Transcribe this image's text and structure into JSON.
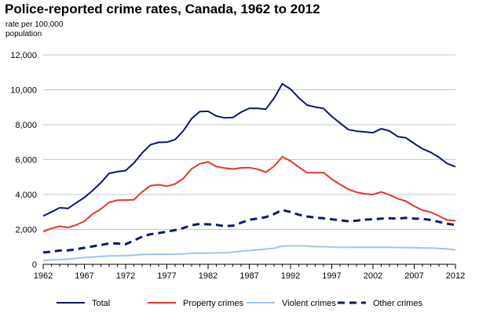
{
  "chart_data": {
    "type": "line",
    "title": "Police-reported crime rates, Canada, 1962 to 2012",
    "ylabel": "rate per 100,000 population",
    "xlabel": "",
    "ylim": [
      0,
      12000
    ],
    "xlim": [
      1962,
      2012
    ],
    "y_ticks": [
      "0",
      "2,000",
      "4,000",
      "6,000",
      "8,000",
      "10,000",
      "12,000"
    ],
    "x_ticks": [
      "1962",
      "1967",
      "1972",
      "1977",
      "1982",
      "1987",
      "1992",
      "1997",
      "2002",
      "2007",
      "2012"
    ],
    "grid": "horizontal",
    "legend_position": "bottom",
    "x": [
      1962,
      1963,
      1964,
      1965,
      1966,
      1967,
      1968,
      1969,
      1970,
      1971,
      1972,
      1973,
      1974,
      1975,
      1976,
      1977,
      1978,
      1979,
      1980,
      1981,
      1982,
      1983,
      1984,
      1985,
      1986,
      1987,
      1988,
      1989,
      1990,
      1991,
      1992,
      1993,
      1994,
      1995,
      1996,
      1997,
      1998,
      1999,
      2000,
      2001,
      2002,
      2003,
      2004,
      2005,
      2006,
      2007,
      2008,
      2009,
      2010,
      2011,
      2012
    ],
    "series": [
      {
        "name": "Total",
        "color": "#0a1a6e",
        "style": "solid",
        "values": [
          2770,
          3000,
          3240,
          3200,
          3520,
          3830,
          4230,
          4680,
          5210,
          5310,
          5370,
          5800,
          6380,
          6850,
          6990,
          7000,
          7150,
          7650,
          8350,
          8750,
          8770,
          8500,
          8390,
          8410,
          8720,
          8940,
          8940,
          8890,
          9520,
          10340,
          10040,
          9540,
          9130,
          9010,
          8930,
          8470,
          8100,
          7720,
          7630,
          7590,
          7540,
          7770,
          7640,
          7320,
          7250,
          6920,
          6620,
          6420,
          6130,
          5770,
          5590
        ]
      },
      {
        "name": "Property crimes",
        "color": "#e8352a",
        "style": "solid",
        "values": [
          1870,
          2060,
          2180,
          2110,
          2250,
          2470,
          2880,
          3170,
          3550,
          3670,
          3680,
          3700,
          4150,
          4500,
          4560,
          4480,
          4600,
          4920,
          5470,
          5760,
          5870,
          5600,
          5520,
          5460,
          5530,
          5540,
          5450,
          5270,
          5620,
          6160,
          5920,
          5570,
          5250,
          5250,
          5260,
          4880,
          4580,
          4300,
          4130,
          4040,
          4000,
          4150,
          3980,
          3760,
          3620,
          3330,
          3100,
          2990,
          2770,
          2540,
          2500
        ]
      },
      {
        "name": "Violent crimes",
        "color": "#9cc6ec",
        "style": "solid",
        "values": [
          220,
          250,
          270,
          290,
          340,
          390,
          420,
          450,
          480,
          480,
          500,
          530,
          560,
          570,
          580,
          570,
          580,
          600,
          630,
          640,
          640,
          650,
          660,
          700,
          750,
          790,
          830,
          870,
          920,
          1040,
          1060,
          1060,
          1050,
          1010,
          1010,
          990,
          970,
          970,
          980,
          980,
          980,
          980,
          980,
          960,
          960,
          950,
          930,
          930,
          910,
          880,
          830
        ]
      },
      {
        "name": "Other crimes",
        "color": "#0a1a6e",
        "style": "dashed",
        "values": [
          680,
          720,
          790,
          800,
          860,
          950,
          1030,
          1100,
          1200,
          1190,
          1150,
          1360,
          1580,
          1720,
          1790,
          1870,
          1960,
          2080,
          2240,
          2320,
          2290,
          2260,
          2190,
          2210,
          2380,
          2550,
          2620,
          2700,
          2880,
          3110,
          3000,
          2840,
          2740,
          2680,
          2640,
          2580,
          2520,
          2470,
          2500,
          2560,
          2580,
          2620,
          2640,
          2620,
          2660,
          2620,
          2600,
          2540,
          2430,
          2330,
          2250
        ]
      }
    ]
  }
}
